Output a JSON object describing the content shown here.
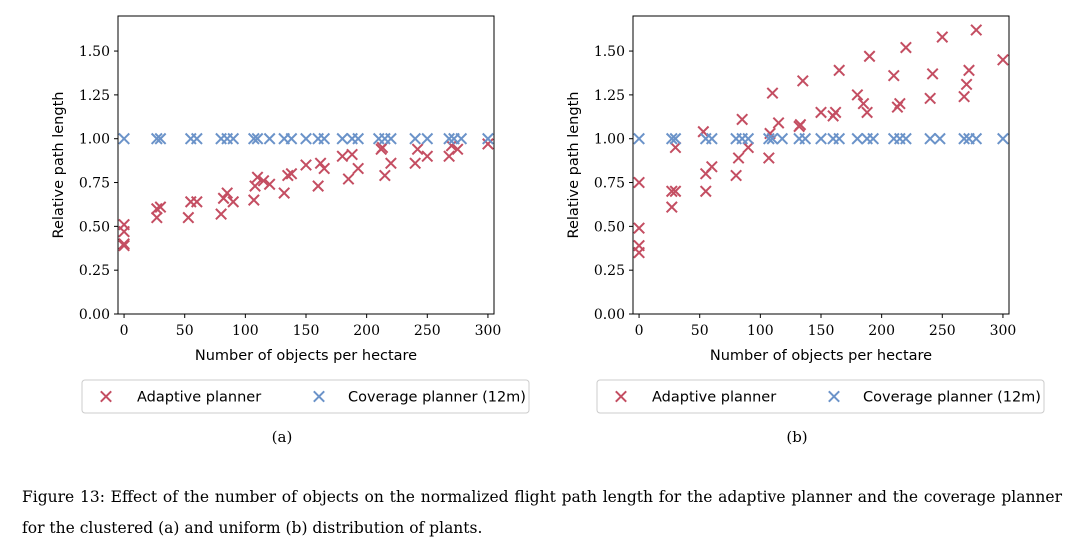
{
  "chart_data": [
    {
      "type": "scatter",
      "panel": "(a)",
      "xlabel": "Number of objects per hectare",
      "ylabel": "Relative path length",
      "xlim": [
        -5,
        305
      ],
      "ylim": [
        0,
        1.7
      ],
      "xticks": [
        0,
        50,
        100,
        150,
        200,
        250,
        300
      ],
      "yticks": [
        0,
        0.25,
        0.5,
        0.75,
        1.0,
        1.25,
        1.5
      ],
      "ytick_labels": [
        "0.00",
        "0.25",
        "0.50",
        "0.75",
        "1.00",
        "1.25",
        "1.50"
      ],
      "legend": {
        "placement": "bottom",
        "entries": [
          "Adaptive planner",
          "Coverage planner (12m)"
        ]
      },
      "series": [
        {
          "name": "Adaptive planner",
          "color": "#c44e62",
          "x": [
            0,
            0,
            0,
            0,
            27,
            27,
            30,
            53,
            55,
            60,
            80,
            82,
            85,
            90,
            107,
            108,
            110,
            115,
            120,
            132,
            135,
            138,
            150,
            160,
            162,
            165,
            180,
            185,
            188,
            193,
            212,
            213,
            215,
            220,
            240,
            242,
            250,
            268,
            270,
            275,
            300
          ],
          "y": [
            0.39,
            0.4,
            0.47,
            0.51,
            0.55,
            0.6,
            0.61,
            0.55,
            0.64,
            0.64,
            0.57,
            0.66,
            0.69,
            0.64,
            0.65,
            0.73,
            0.78,
            0.76,
            0.74,
            0.69,
            0.79,
            0.8,
            0.85,
            0.73,
            0.86,
            0.83,
            0.9,
            0.77,
            0.91,
            0.83,
            0.94,
            0.95,
            0.79,
            0.86,
            0.86,
            0.94,
            0.9,
            0.9,
            0.96,
            0.94,
            0.97
          ]
        },
        {
          "name": "Coverage planner (12m)",
          "color": "#6b93c9",
          "x": [
            0,
            27,
            30,
            55,
            60,
            80,
            85,
            90,
            107,
            110,
            120,
            132,
            138,
            150,
            160,
            165,
            180,
            188,
            193,
            210,
            215,
            220,
            240,
            250,
            268,
            272,
            278,
            300
          ],
          "y": [
            1,
            1,
            1,
            1,
            1,
            1,
            1,
            1,
            1,
            1,
            1,
            1,
            1,
            1,
            1,
            1,
            1,
            1,
            1,
            1,
            1,
            1,
            1,
            1,
            1,
            1,
            1,
            1
          ]
        }
      ]
    },
    {
      "type": "scatter",
      "panel": "(b)",
      "xlabel": "Number of objects per hectare",
      "ylabel": "Relative path length",
      "xlim": [
        -5,
        305
      ],
      "ylim": [
        0,
        1.7
      ],
      "xticks": [
        0,
        50,
        100,
        150,
        200,
        250,
        300
      ],
      "yticks": [
        0,
        0.25,
        0.5,
        0.75,
        1.0,
        1.25,
        1.5
      ],
      "ytick_labels": [
        "0.00",
        "0.25",
        "0.50",
        "0.75",
        "1.00",
        "1.25",
        "1.50"
      ],
      "legend": {
        "placement": "bottom",
        "entries": [
          "Adaptive planner",
          "Coverage planner (12m)"
        ]
      },
      "series": [
        {
          "name": "Adaptive planner",
          "color": "#c44e62",
          "x": [
            0,
            0,
            0,
            0,
            27,
            27,
            30,
            30,
            53,
            55,
            55,
            60,
            80,
            82,
            85,
            90,
            107,
            108,
            110,
            115,
            132,
            133,
            135,
            150,
            160,
            162,
            165,
            180,
            185,
            188,
            190,
            210,
            213,
            215,
            220,
            240,
            242,
            250,
            268,
            270,
            272,
            278,
            300
          ],
          "y": [
            0.35,
            0.39,
            0.49,
            0.75,
            0.61,
            0.7,
            0.95,
            0.7,
            1.04,
            0.7,
            0.8,
            0.84,
            0.79,
            0.89,
            1.11,
            0.95,
            0.89,
            1.03,
            1.26,
            1.09,
            1.07,
            1.08,
            1.33,
            1.15,
            1.13,
            1.15,
            1.39,
            1.25,
            1.2,
            1.15,
            1.47,
            1.36,
            1.18,
            1.2,
            1.52,
            1.23,
            1.37,
            1.58,
            1.24,
            1.31,
            1.39,
            1.62,
            1.45
          ]
        },
        {
          "name": "Coverage planner (12m)",
          "color": "#6b93c9",
          "x": [
            0,
            27,
            30,
            55,
            60,
            80,
            85,
            90,
            107,
            110,
            118,
            132,
            137,
            150,
            160,
            165,
            180,
            188,
            193,
            210,
            215,
            220,
            240,
            248,
            268,
            272,
            278,
            300
          ],
          "y": [
            1,
            1,
            1,
            1,
            1,
            1,
            1,
            1,
            1,
            1,
            1,
            1,
            1,
            1,
            1,
            1,
            1,
            1,
            1,
            1,
            1,
            1,
            1,
            1,
            1,
            1,
            1,
            1
          ]
        }
      ]
    }
  ],
  "caption": "Figure 13: Effect of the number of objects on the normalized flight path length for the adaptive planner and the coverage planner for the clustered (a) and uniform (b) distribution of plants."
}
